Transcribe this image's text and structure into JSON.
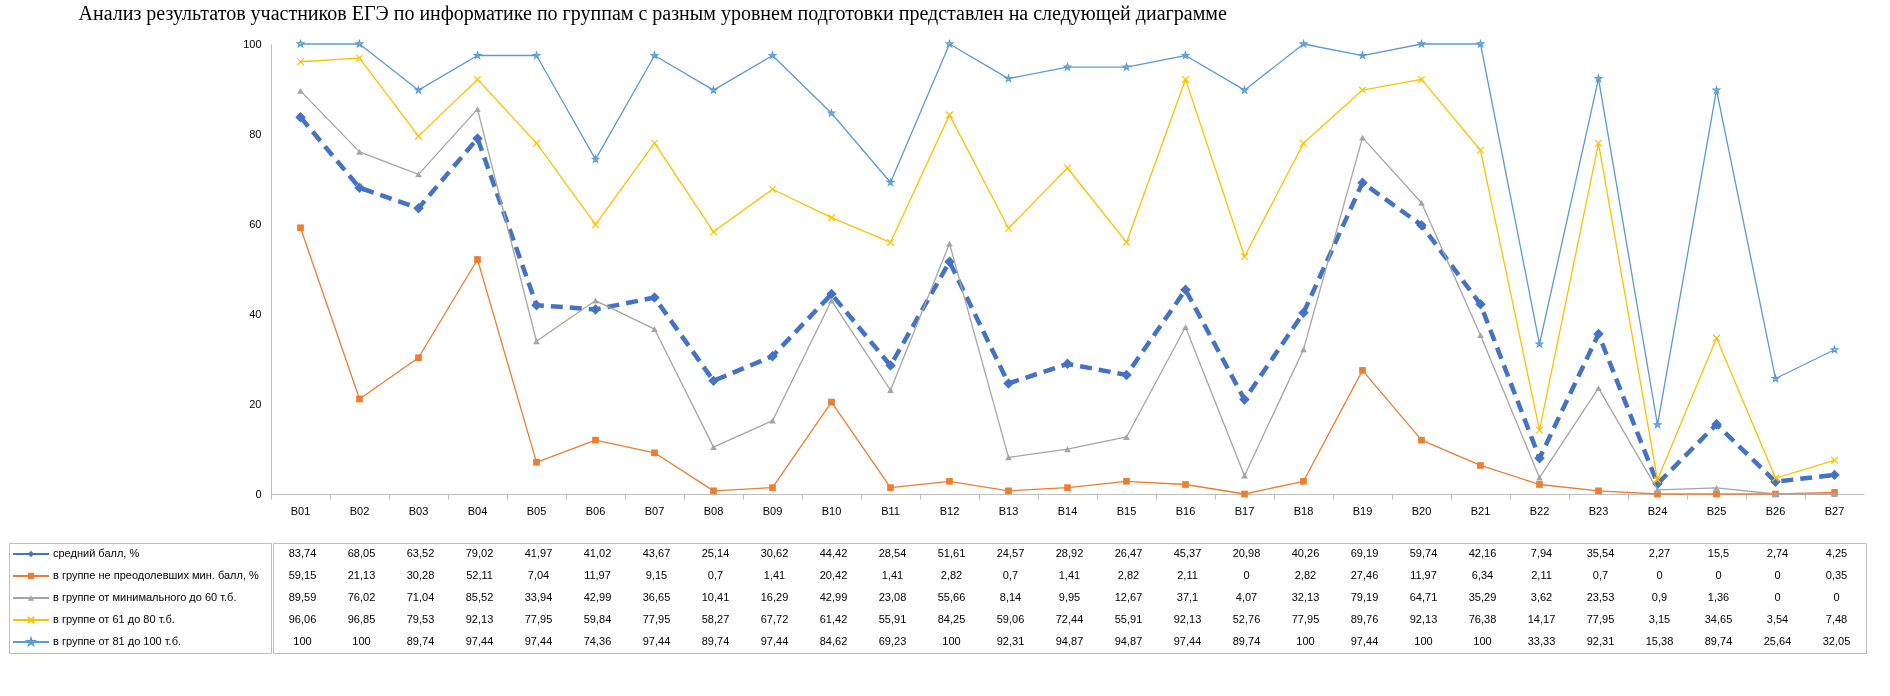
{
  "chart_data": {
    "type": "line",
    "title": "Анализ результатов участников ЕГЭ по информатике по группам с разным уровнем подготовки представлен на следующей диаграмме",
    "categories": [
      "B01",
      "B02",
      "B03",
      "B04",
      "B05",
      "B06",
      "B07",
      "B08",
      "B09",
      "B10",
      "B11",
      "B12",
      "B13",
      "B14",
      "B15",
      "B16",
      "B17",
      "B18",
      "B19",
      "B20",
      "B21",
      "B22",
      "B23",
      "B24",
      "B25",
      "B26",
      "B27"
    ],
    "ylim": [
      0,
      100
    ],
    "yticks": [
      0,
      20,
      40,
      60,
      80,
      100
    ],
    "grid": false,
    "legend": "bottom left",
    "series": [
      {
        "name": "средний балл, %",
        "color": "#4472c4",
        "marker": "diamond",
        "line_style": "dashed",
        "values": [
          83.74,
          68.05,
          63.52,
          79.02,
          41.97,
          41.02,
          43.67,
          25.14,
          30.62,
          44.42,
          28.54,
          51.61,
          24.57,
          28.92,
          26.47,
          45.37,
          20.98,
          40.26,
          69.19,
          59.74,
          42.16,
          7.94,
          35.54,
          2.27,
          15.5,
          2.74,
          4.25
        ],
        "value_labels": [
          "83,74",
          "68,05",
          "63,52",
          "79,02",
          "41,97",
          "41,02",
          "43,67",
          "25,14",
          "30,62",
          "44,42",
          "28,54",
          "51,61",
          "24,57",
          "28,92",
          "26,47",
          "45,37",
          "20,98",
          "40,26",
          "69,19",
          "59,74",
          "42,16",
          "7,94",
          "35,54",
          "2,27",
          "15,5",
          "2,74",
          "4,25"
        ]
      },
      {
        "name": "в группе не преодолевших мин. балл, %",
        "color": "#ed7d31",
        "marker": "square",
        "values": [
          59.15,
          21.13,
          30.28,
          52.11,
          7.04,
          11.97,
          9.15,
          0.7,
          1.41,
          20.42,
          1.41,
          2.82,
          0.7,
          1.41,
          2.82,
          2.11,
          0,
          2.82,
          27.46,
          11.97,
          6.34,
          2.11,
          0.7,
          0,
          0,
          0,
          0.35
        ],
        "value_labels": [
          "59,15",
          "21,13",
          "30,28",
          "52,11",
          "7,04",
          "11,97",
          "9,15",
          "0,7",
          "1,41",
          "20,42",
          "1,41",
          "2,82",
          "0,7",
          "1,41",
          "2,82",
          "2,11",
          "0",
          "2,82",
          "27,46",
          "11,97",
          "6,34",
          "2,11",
          "0,7",
          "0",
          "0",
          "0",
          "0,35"
        ]
      },
      {
        "name": "в группе от минимального до 60 т.б.",
        "color": "#a5a5a5",
        "marker": "triangle",
        "values": [
          89.59,
          76.02,
          71.04,
          85.52,
          33.94,
          42.99,
          36.65,
          10.41,
          16.29,
          42.99,
          23.08,
          55.66,
          8.14,
          9.95,
          12.67,
          37.1,
          4.07,
          32.13,
          79.19,
          64.71,
          35.29,
          3.62,
          23.53,
          0.9,
          1.36,
          0,
          0
        ],
        "value_labels": [
          "89,59",
          "76,02",
          "71,04",
          "85,52",
          "33,94",
          "42,99",
          "36,65",
          "10,41",
          "16,29",
          "42,99",
          "23,08",
          "55,66",
          "8,14",
          "9,95",
          "12,67",
          "37,1",
          "4,07",
          "32,13",
          "79,19",
          "64,71",
          "35,29",
          "3,62",
          "23,53",
          "0,9",
          "1,36",
          "0",
          "0"
        ]
      },
      {
        "name": "в группе от 61 до 80 т.б.",
        "color": "#ffc000",
        "marker": "cross",
        "values": [
          96.06,
          96.85,
          79.53,
          92.13,
          77.95,
          59.84,
          77.95,
          58.27,
          67.72,
          61.42,
          55.91,
          84.25,
          59.06,
          72.44,
          55.91,
          92.13,
          52.76,
          77.95,
          89.76,
          92.13,
          76.38,
          14.17,
          77.95,
          3.15,
          34.65,
          3.54,
          7.48
        ],
        "value_labels": [
          "96,06",
          "96,85",
          "79,53",
          "92,13",
          "77,95",
          "59,84",
          "77,95",
          "58,27",
          "67,72",
          "61,42",
          "55,91",
          "84,25",
          "59,06",
          "72,44",
          "55,91",
          "92,13",
          "52,76",
          "77,95",
          "89,76",
          "92,13",
          "76,38",
          "14,17",
          "77,95",
          "3,15",
          "34,65",
          "3,54",
          "7,48"
        ]
      },
      {
        "name": "в группе от 81 до 100 т.б.",
        "color": "#5b9bd5",
        "marker": "star",
        "values": [
          100,
          100,
          89.74,
          97.44,
          97.44,
          74.36,
          97.44,
          89.74,
          97.44,
          84.62,
          69.23,
          100,
          92.31,
          94.87,
          94.87,
          97.44,
          89.74,
          100,
          97.44,
          100,
          100,
          33.33,
          92.31,
          15.38,
          89.74,
          25.64,
          32.05
        ],
        "value_labels": [
          "100",
          "100",
          "89,74",
          "97,44",
          "97,44",
          "74,36",
          "97,44",
          "89,74",
          "97,44",
          "84,62",
          "69,23",
          "100",
          "92,31",
          "94,87",
          "94,87",
          "97,44",
          "89,74",
          "100",
          "97,44",
          "100",
          "100",
          "33,33",
          "92,31",
          "15,38",
          "89,74",
          "25,64",
          "32,05"
        ]
      }
    ]
  }
}
